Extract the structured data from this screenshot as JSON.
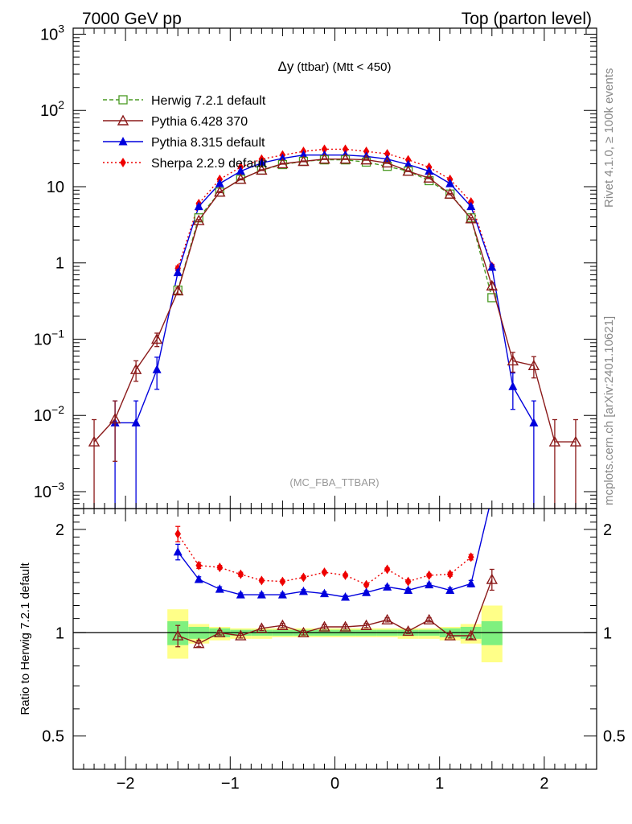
{
  "header": {
    "left": "7000 GeV pp",
    "right": "Top (parton level)"
  },
  "side_labels": {
    "rivet": "Rivet 4.1.0, ≥ 100k events",
    "mcplots": "mcplots.cern.ch [arXiv:2401.10621]"
  },
  "colors": {
    "herwig": "#4a9a23",
    "pythia6": "#8b1a1a",
    "pythia8": "#0000dd",
    "sherpa": "#ee0000",
    "band_inner": "#7ff07f",
    "band_outer": "#ffff88"
  },
  "chart_data": {
    "type": "line",
    "title": "Δy (ttbar) (Mtt < 450)",
    "title_main": "Δy",
    "title_sub": "(ttbar) (Mtt < 450)",
    "watermark": "(MC_FBA_TTBAR)",
    "ratio_ylabel": "Ratio to Herwig 7.2.1 default",
    "x": [
      -2.3,
      -2.1,
      -1.9,
      -1.7,
      -1.5,
      -1.3,
      -1.1,
      -0.9,
      -0.7,
      -0.5,
      -0.3,
      -0.1,
      0.1,
      0.3,
      0.5,
      0.7,
      0.9,
      1.1,
      1.3,
      1.5,
      1.7,
      1.9,
      2.1,
      2.3
    ],
    "xlim": [
      -2.5,
      2.5
    ],
    "xticks": [
      -2,
      -1,
      0,
      1,
      2
    ],
    "xtick_labels": [
      "−2",
      "−1",
      "0",
      "1",
      "2"
    ],
    "ylim": [
      0.0006,
      1200
    ],
    "yscale": "log",
    "ytick_labels": [
      {
        "v": 0.001,
        "base": "10",
        "exp": "−3"
      },
      {
        "v": 0.01,
        "base": "10",
        "exp": "−2"
      },
      {
        "v": 0.1,
        "base": "10",
        "exp": "−1"
      },
      {
        "v": 1,
        "base": "1",
        "exp": ""
      },
      {
        "v": 10,
        "base": "10",
        "exp": ""
      },
      {
        "v": 100,
        "base": "10",
        "exp": "2"
      },
      {
        "v": 1000,
        "base": "10",
        "exp": "3"
      }
    ],
    "ratio_ylim": [
      0.4,
      2.3
    ],
    "ratio_yticks": [
      {
        "v": 0.5,
        "label": "0.5"
      },
      {
        "v": 1,
        "label": "1"
      },
      {
        "v": 2,
        "label": "2"
      }
    ],
    "band": {
      "x": [
        -1.5,
        -1.3,
        -1.1,
        -0.9,
        -0.7,
        -0.5,
        -0.3,
        -0.1,
        0.1,
        0.3,
        0.5,
        0.7,
        0.9,
        1.1,
        1.3,
        1.5
      ],
      "inner_lo": [
        0.92,
        0.96,
        0.97,
        0.98,
        0.98,
        0.98,
        0.98,
        0.98,
        0.98,
        0.98,
        0.98,
        0.98,
        0.98,
        0.97,
        0.96,
        0.92
      ],
      "inner_hi": [
        1.08,
        1.04,
        1.03,
        1.02,
        1.02,
        1.02,
        1.02,
        1.02,
        1.02,
        1.02,
        1.02,
        1.02,
        1.02,
        1.03,
        1.04,
        1.08
      ],
      "outer_lo": [
        0.84,
        0.93,
        0.95,
        0.96,
        0.96,
        0.97,
        0.97,
        0.97,
        0.97,
        0.97,
        0.97,
        0.96,
        0.96,
        0.95,
        0.93,
        0.82
      ],
      "outer_hi": [
        1.17,
        1.06,
        1.04,
        1.03,
        1.03,
        1.03,
        1.03,
        1.03,
        1.03,
        1.03,
        1.03,
        1.03,
        1.03,
        1.04,
        1.06,
        1.2
      ]
    },
    "series": [
      {
        "key": "herwig",
        "name": "Herwig 7.2.1 default",
        "marker": "open-square",
        "dash": "5,3",
        "values": [
          null,
          null,
          null,
          null,
          0.44,
          3.9,
          8.5,
          12.5,
          16.5,
          19.5,
          21.5,
          22.5,
          22.5,
          21.0,
          18.5,
          16.0,
          12.0,
          8.0,
          3.9,
          0.35,
          null,
          null,
          null,
          null
        ],
        "errors": [
          0,
          0,
          0,
          0,
          0.03,
          0.1,
          0.15,
          0.2,
          0.2,
          0.25,
          0.25,
          0.25,
          0.25,
          0.25,
          0.2,
          0.2,
          0.2,
          0.15,
          0.1,
          0.03,
          0,
          0,
          0,
          0
        ],
        "ratio": [],
        "ratio_err": []
      },
      {
        "key": "pythia6",
        "name": "Pythia 6.428 370",
        "marker": "open-triangle",
        "dash": "",
        "values": [
          0.0045,
          0.009,
          0.04,
          0.1,
          0.43,
          3.6,
          8.5,
          12.5,
          16.5,
          20.0,
          21.5,
          23.0,
          23.0,
          22.5,
          20.5,
          16.0,
          13.0,
          8.0,
          3.8,
          0.5,
          0.052,
          0.045,
          0.0045,
          0.0045
        ],
        "errors": [
          0.0043,
          0.0065,
          0.012,
          0.02,
          0.04,
          0.1,
          0.15,
          0.2,
          0.2,
          0.25,
          0.25,
          0.25,
          0.25,
          0.25,
          0.25,
          0.2,
          0.2,
          0.15,
          0.1,
          0.05,
          0.015,
          0.014,
          0.0043,
          0.0043
        ],
        "ratio": [
          null,
          null,
          null,
          null,
          0.98,
          0.93,
          1.0,
          0.98,
          1.03,
          1.05,
          1.0,
          1.04,
          1.04,
          1.05,
          1.09,
          1.01,
          1.09,
          0.98,
          0.98,
          1.43,
          null,
          null,
          null,
          null
        ],
        "ratio_err": [
          0,
          0,
          0,
          0,
          0.07,
          0.02,
          0.015,
          0.015,
          0.015,
          0.015,
          0.015,
          0.015,
          0.015,
          0.015,
          0.015,
          0.015,
          0.015,
          0.015,
          0.02,
          0.1,
          0,
          0,
          0,
          0
        ]
      },
      {
        "key": "pythia8",
        "name": "Pythia 8.315 default",
        "marker": "filled-triangle",
        "dash": "",
        "values": [
          null,
          0.008,
          0.008,
          0.04,
          0.75,
          5.5,
          11.0,
          16.0,
          20.5,
          23.5,
          26.0,
          26.0,
          26.0,
          25.0,
          23.0,
          19.5,
          16.0,
          11.0,
          5.5,
          0.88,
          0.024,
          0.008,
          null,
          null
        ],
        "errors": [
          0,
          0.0075,
          0.0075,
          0.018,
          0.06,
          0.15,
          0.2,
          0.25,
          0.3,
          0.3,
          0.3,
          0.3,
          0.3,
          0.3,
          0.3,
          0.3,
          0.25,
          0.2,
          0.15,
          0.06,
          0.012,
          0.0075,
          0,
          0
        ],
        "ratio": [
          null,
          null,
          null,
          null,
          1.72,
          1.43,
          1.34,
          1.29,
          1.29,
          1.29,
          1.32,
          1.3,
          1.27,
          1.31,
          1.36,
          1.33,
          1.38,
          1.33,
          1.39,
          2.5,
          null,
          null,
          null,
          null
        ],
        "ratio_err": [
          0,
          0,
          0,
          0,
          0.09,
          0.025,
          0.02,
          0.015,
          0.015,
          0.015,
          0.015,
          0.015,
          0.015,
          0.015,
          0.015,
          0.015,
          0.015,
          0.02,
          0.03,
          0.1,
          0,
          0,
          0,
          0
        ]
      },
      {
        "key": "sherpa",
        "name": "Sherpa 2.2.9 default",
        "marker": "filled-diamond",
        "dash": "2,3",
        "values": [
          null,
          null,
          null,
          null,
          0.85,
          6.0,
          12.5,
          18.0,
          23.0,
          26.0,
          29.0,
          31.0,
          31.0,
          29.0,
          27.0,
          22.5,
          18.0,
          12.5,
          6.3,
          0.9,
          null,
          null,
          null,
          null
        ],
        "errors": [
          0,
          0,
          0,
          0,
          0.06,
          0.15,
          0.2,
          0.25,
          0.3,
          0.3,
          0.3,
          0.3,
          0.3,
          0.3,
          0.3,
          0.3,
          0.25,
          0.2,
          0.15,
          0.06,
          0,
          0,
          0,
          0
        ],
        "ratio": [
          null,
          null,
          null,
          null,
          1.94,
          1.57,
          1.55,
          1.48,
          1.42,
          1.41,
          1.45,
          1.5,
          1.47,
          1.38,
          1.53,
          1.41,
          1.47,
          1.48,
          1.66,
          null,
          null,
          null,
          null,
          null
        ],
        "ratio_err": [
          0,
          0,
          0,
          0,
          0.1,
          0.03,
          0.02,
          0.02,
          0.015,
          0.015,
          0.015,
          0.015,
          0.015,
          0.015,
          0.015,
          0.015,
          0.015,
          0.02,
          0.03,
          0,
          0,
          0,
          0,
          0
        ]
      }
    ]
  }
}
